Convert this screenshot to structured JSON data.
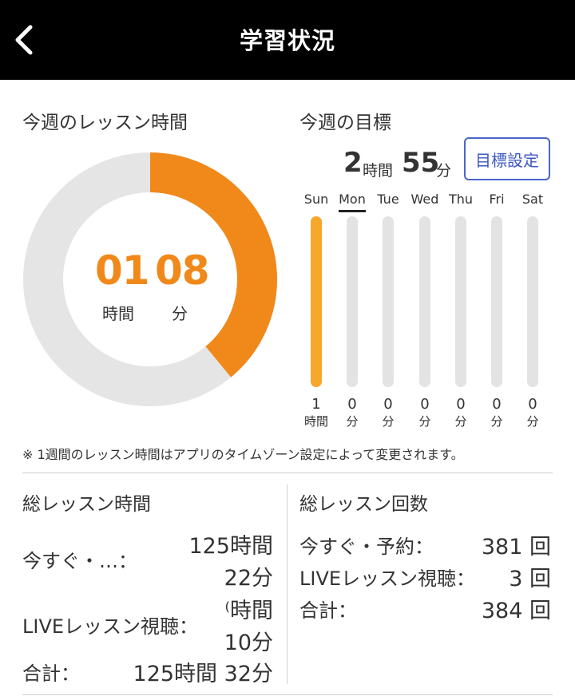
{
  "header": {
    "title": "学習状況",
    "back_icon": "chevron-left-icon"
  },
  "weekly_lesson": {
    "label": "今週のレッスン時間",
    "hours": "01",
    "minutes": "08",
    "hours_unit": "時間",
    "minutes_unit": "分",
    "progress": 0.39,
    "colors": {
      "progress": "#f0891a",
      "track": "#e5e5e5"
    }
  },
  "weekly_goal": {
    "label": "今週の目標",
    "hours": "2",
    "hours_unit": "時間",
    "minutes": "55",
    "minutes_unit": "分",
    "button_label": "目標設定",
    "current_day": "Mon",
    "days": [
      {
        "name": "Sun",
        "value": "1",
        "unit": "時間",
        "fill": 1.0
      },
      {
        "name": "Mon",
        "value": "0",
        "unit": "分",
        "fill": 0
      },
      {
        "name": "Tue",
        "value": "0",
        "unit": "分",
        "fill": 0
      },
      {
        "name": "Wed",
        "value": "0",
        "unit": "分",
        "fill": 0
      },
      {
        "name": "Thu",
        "value": "0",
        "unit": "分",
        "fill": 0
      },
      {
        "name": "Fri",
        "value": "0",
        "unit": "分",
        "fill": 0
      },
      {
        "name": "Sat",
        "value": "0",
        "unit": "分",
        "fill": 0
      }
    ],
    "colors": {
      "bar": "#f7a72c",
      "track": "#e3e3e3"
    }
  },
  "note": "※ 1週間のレッスン時間はアプリのタイムゾーン設定によって変更されます。",
  "total_time": {
    "label": "総レッスン時間",
    "rows": [
      {
        "label": "今すぐ・…：",
        "line1": "125時間",
        "line2": "22分"
      },
      {
        "label": "LIVEレッスン視聴：",
        "line1": "⁽時間",
        "line2": "10分"
      },
      {
        "label": "合計：",
        "line1": "125時間 32分"
      }
    ]
  },
  "total_count": {
    "label": "総レッスン回数",
    "rows": [
      {
        "label": "今すぐ・予約：",
        "value": "381 回"
      },
      {
        "label": "LIVEレッスン視聴：",
        "value": "3 回"
      },
      {
        "label": "合計：",
        "value": "384 回"
      }
    ]
  }
}
